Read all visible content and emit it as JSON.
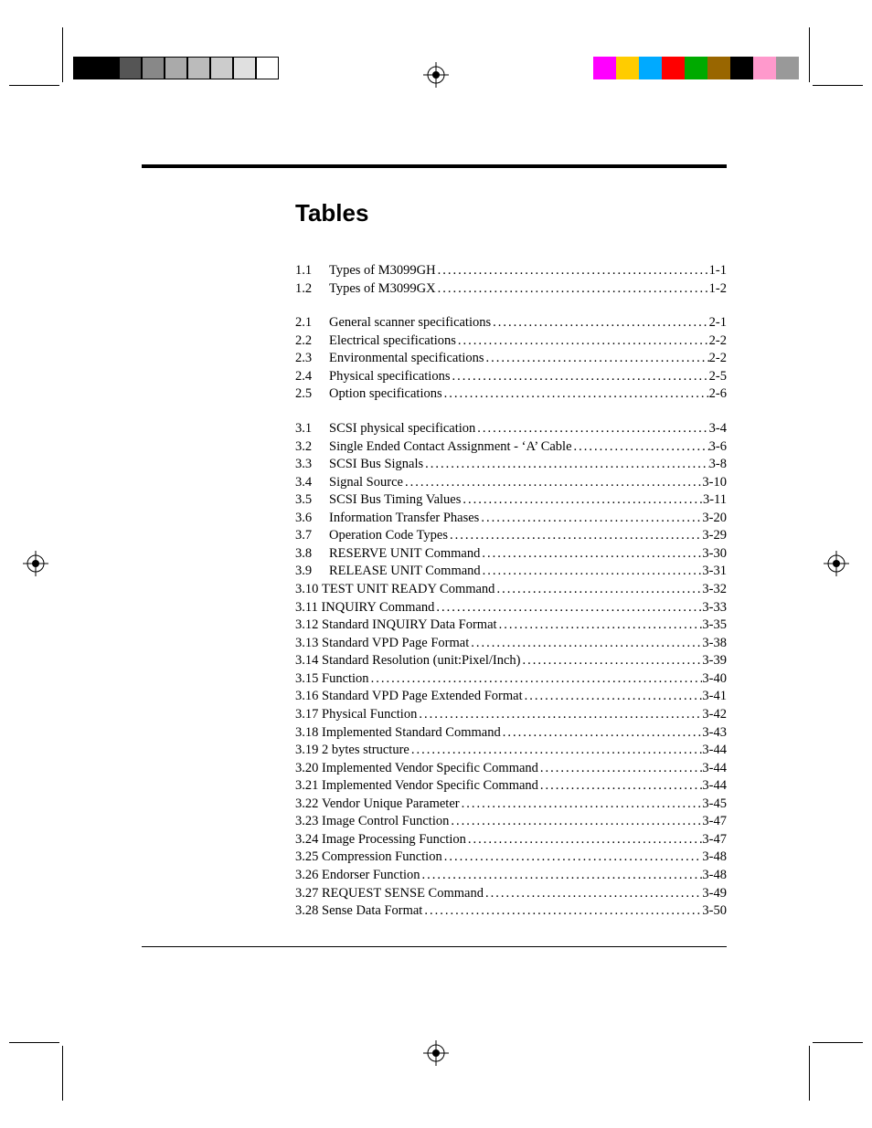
{
  "title": "Tables",
  "colors": {
    "left_bars": [
      "#000000",
      "#000000",
      "#555555",
      "#888888",
      "#aaaaaa",
      "#bbbbbb",
      "#cccccc",
      "#e0e0e0",
      "#ffffff"
    ],
    "right_bars": [
      "#ff00ff",
      "#ffcc00",
      "#00aaff",
      "#ff0000",
      "#00aa00",
      "#996600",
      "#000000",
      "#ff99cc",
      "#999999"
    ],
    "left_borders": [
      "#000",
      "#000",
      "#000",
      "#000",
      "#000",
      "#000",
      "#000",
      "#000",
      "#000"
    ],
    "background": "#ffffff"
  },
  "groups": [
    {
      "entries": [
        {
          "num": "1.1",
          "label": "Types of M3099GH",
          "page": "1-1"
        },
        {
          "num": "1.2",
          "label": "Types of M3099GX",
          "page": "1-2"
        }
      ]
    },
    {
      "entries": [
        {
          "num": "2.1",
          "label": "General scanner specifications",
          "page": "2-1"
        },
        {
          "num": "2.2",
          "label": "Electrical specifications",
          "page": "2-2"
        },
        {
          "num": "2.3",
          "label": "Environmental specifications",
          "page": "2-2"
        },
        {
          "num": "2.4",
          "label": "Physical specifications",
          "page": "2-5"
        },
        {
          "num": "2.5",
          "label": "Option specifications",
          "page": "2-6"
        }
      ]
    },
    {
      "entries": [
        {
          "num": "3.1",
          "label": "SCSI physical specification",
          "page": "3-4"
        },
        {
          "num": "3.2",
          "label": "Single Ended Contact Assignment - ‘A’ Cable",
          "page": "3-6"
        },
        {
          "num": "3.3",
          "label": "SCSI Bus Signals",
          "page": "3-8"
        },
        {
          "num": "3.4",
          "label": "Signal Source",
          "page": "3-10"
        },
        {
          "num": "3.5",
          "label": "SCSI Bus Timing Values",
          "page": "3-11"
        },
        {
          "num": "3.6",
          "label": "Information Transfer Phases",
          "page": "3-20"
        },
        {
          "num": "3.7",
          "label": "Operation Code Types",
          "page": "3-29"
        },
        {
          "num": "3.8",
          "label": "RESERVE UNIT Command",
          "page": "3-30"
        },
        {
          "num": "3.9",
          "label": "RELEASE UNIT Command",
          "page": "3-31"
        },
        {
          "num": "3.10",
          "label": "TEST UNIT READY Command",
          "page": "3-32"
        },
        {
          "num": "3.11",
          "label": "INQUIRY Command",
          "page": "3-33"
        },
        {
          "num": "3.12",
          "label": "Standard INQUIRY Data Format",
          "page": "3-35"
        },
        {
          "num": "3.13",
          "label": "Standard VPD Page Format",
          "page": "3-38"
        },
        {
          "num": "3.14",
          "label": "Standard Resolution (unit:Pixel/Inch)",
          "page": "3-39"
        },
        {
          "num": "3.15",
          "label": "Function",
          "page": "3-40"
        },
        {
          "num": "3.16",
          "label": "Standard VPD Page Extended Format",
          "page": "3-41"
        },
        {
          "num": "3.17",
          "label": "Physical Function",
          "page": "3-42"
        },
        {
          "num": "3.18",
          "label": "Implemented Standard Command",
          "page": "3-43"
        },
        {
          "num": "3.19",
          "label": "2 bytes structure",
          "page": "3-44"
        },
        {
          "num": "3.20",
          "label": "Implemented Vendor Specific Command",
          "page": "3-44"
        },
        {
          "num": "3.21",
          "label": "Implemented Vendor Specific Command",
          "page": "3-44"
        },
        {
          "num": "3.22",
          "label": "Vendor Unique Parameter",
          "page": "3-45"
        },
        {
          "num": "3.23",
          "label": "Image Control Function",
          "page": "3-47"
        },
        {
          "num": "3.24",
          "label": "Image Processing Function",
          "page": "3-47"
        },
        {
          "num": "3.25",
          "label": "Compression Function",
          "page": "3-48"
        },
        {
          "num": "3.26",
          "label": "Endorser Function",
          "page": "3-48"
        },
        {
          "num": "3.27",
          "label": "REQUEST SENSE Command",
          "page": "3-49"
        },
        {
          "num": "3.28",
          "label": "Sense Data Format",
          "page": "3-50"
        }
      ]
    }
  ]
}
